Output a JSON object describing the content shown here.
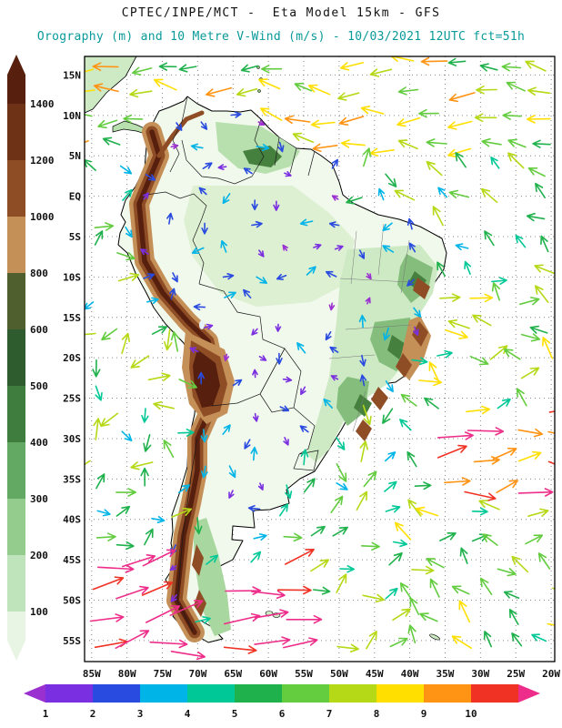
{
  "header": {
    "title": "CPTEC/INPE/MCT -  Eta Model 15km - GFS",
    "subtitle": "Orography (m) and 10 Metre V-Wind (m/s) - 10/03/2021 12UTC fct=51h",
    "title_color": "#111111",
    "subtitle_color": "#0a9a9a"
  },
  "map": {
    "lat_labels": [
      "15N",
      "10N",
      "5N",
      "EQ",
      "5S",
      "10S",
      "15S",
      "20S",
      "25S",
      "30S",
      "35S",
      "40S",
      "45S",
      "50S",
      "55S"
    ],
    "lon_labels": [
      "85W",
      "80W",
      "75W",
      "70W",
      "65W",
      "60W",
      "55W",
      "50W",
      "45W",
      "40W",
      "35W",
      "30W",
      "25W",
      "20W"
    ],
    "grid_style": "dotted"
  },
  "orography_scale": {
    "unit": "m",
    "labels": [
      "1400",
      "1200",
      "1000",
      "800",
      "600",
      "500",
      "400",
      "300",
      "200",
      "100"
    ],
    "colors_top_to_bottom": [
      "#571f0e",
      "#6e3317",
      "#8f4d26",
      "#c49058",
      "#4f5f2e",
      "#2e5c2e",
      "#3f7d3f",
      "#63a863",
      "#94cc8e",
      "#bfe3bb",
      "#e9f5e4"
    ]
  },
  "wind_scale": {
    "unit": "m/s",
    "labels": [
      "1",
      "2",
      "3",
      "4",
      "5",
      "6",
      "7",
      "8",
      "9",
      "10"
    ],
    "colors_left_to_right": [
      "#9b30d0",
      "#7a2fe0",
      "#2a4be0",
      "#00b4e8",
      "#00c896",
      "#1fb14c",
      "#63cc3f",
      "#b5d916",
      "#ffdf00",
      "#ff9414",
      "#f03224",
      "#ee2d8a"
    ]
  }
}
